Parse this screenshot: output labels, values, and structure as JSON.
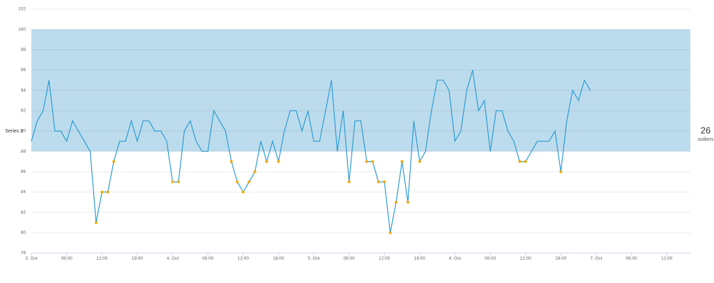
{
  "chart_data": {
    "type": "line",
    "series": [
      {
        "name": "Series 2",
        "color": "#2b9bd1",
        "values": [
          89,
          91,
          92,
          95,
          90,
          90,
          89,
          91,
          90,
          89,
          88,
          81,
          84,
          84,
          87,
          89,
          89,
          91,
          89,
          91,
          91,
          90,
          90,
          89,
          85,
          85,
          90,
          91,
          89,
          88,
          88,
          92,
          91,
          90,
          87,
          85,
          84,
          85,
          86,
          89,
          87,
          89,
          87,
          90,
          92,
          92,
          90,
          92,
          89,
          89,
          92,
          95,
          88,
          92,
          85,
          91,
          91,
          87,
          87,
          85,
          85,
          80,
          83,
          87,
          83,
          91,
          87,
          88,
          92,
          95,
          95,
          94,
          89,
          90,
          94,
          96,
          92,
          93,
          88,
          92,
          92,
          90,
          89,
          87,
          87,
          88,
          89,
          89,
          89,
          90,
          86,
          91,
          94,
          93,
          95,
          94
        ]
      }
    ],
    "x": [
      0,
      1,
      2,
      3,
      4,
      5,
      6,
      7,
      8,
      9,
      10,
      11,
      12,
      13,
      14,
      15,
      16,
      17,
      18,
      19,
      20,
      21,
      22,
      23,
      24,
      25,
      26,
      27,
      28,
      29,
      30,
      31,
      32,
      33,
      34,
      35,
      36,
      37,
      38,
      39,
      40,
      41,
      42,
      43,
      44,
      45,
      46,
      47,
      48,
      49,
      50,
      51,
      52,
      53,
      54,
      55,
      56,
      57,
      58,
      59,
      60,
      61,
      62,
      63,
      64,
      65,
      66,
      67,
      68,
      69,
      70,
      71,
      72,
      73,
      74,
      75,
      76,
      77,
      78,
      79,
      80,
      81,
      82,
      83,
      84,
      85,
      86,
      87,
      88,
      89,
      90,
      91,
      92,
      93,
      94,
      95
    ],
    "xlim": [
      0,
      112
    ],
    "xticks": [
      {
        "value": 0,
        "label": "3. Oct"
      },
      {
        "value": 6,
        "label": "06:00"
      },
      {
        "value": 12,
        "label": "12:00"
      },
      {
        "value": 18,
        "label": "18:00"
      },
      {
        "value": 24,
        "label": "4. Oct"
      },
      {
        "value": 30,
        "label": "06:00"
      },
      {
        "value": 36,
        "label": "12:00"
      },
      {
        "value": 42,
        "label": "18:00"
      },
      {
        "value": 48,
        "label": "5. Oct"
      },
      {
        "value": 54,
        "label": "06:00"
      },
      {
        "value": 60,
        "label": "12:00"
      },
      {
        "value": 66,
        "label": "18:00"
      },
      {
        "value": 72,
        "label": "6. Oct"
      },
      {
        "value": 78,
        "label": "06:00"
      },
      {
        "value": 84,
        "label": "12:00"
      },
      {
        "value": 90,
        "label": "18:00"
      },
      {
        "value": 96,
        "label": "7. Oct"
      },
      {
        "value": 102,
        "label": "06:00"
      },
      {
        "value": 108,
        "label": "12:00"
      }
    ],
    "ylim": [
      78,
      102
    ],
    "yticks": [
      78,
      80,
      82,
      84,
      86,
      88,
      90,
      92,
      94,
      96,
      98,
      100,
      102
    ],
    "grid": true,
    "band": [
      88,
      100
    ],
    "band_color": "#bcdcee",
    "outlier_color": "#f2a900",
    "outlier_count": 26,
    "outlier_label": "outliers"
  }
}
